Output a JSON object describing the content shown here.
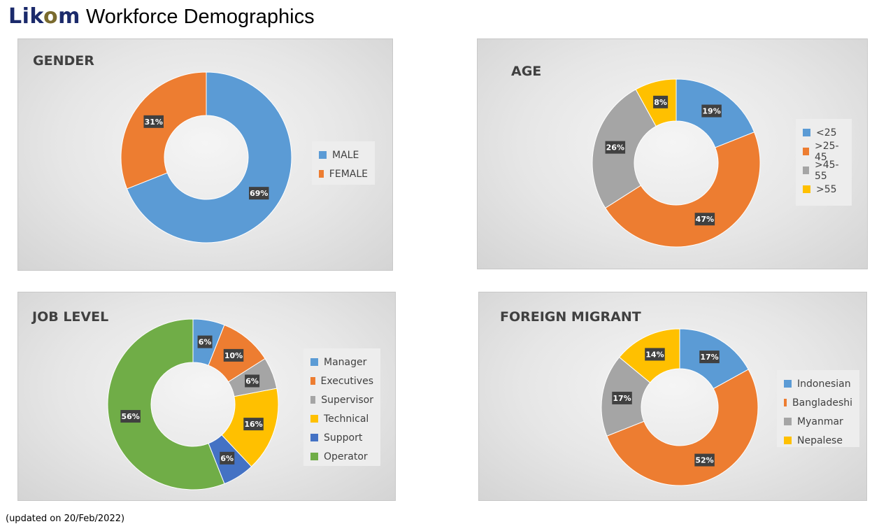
{
  "header": {
    "logo": "Likom",
    "title": "Workforce Demographics"
  },
  "footnote": "(updated on 20/Feb/2022)",
  "colors": {
    "blue": "#5b9bd5",
    "orange": "#ed7d31",
    "gray": "#a5a5a5",
    "yellow": "#ffc000",
    "darkblue": "#4472c4",
    "green": "#70ad47"
  },
  "chart_data": [
    {
      "type": "pie",
      "title": "GENDER",
      "categories": [
        "MALE",
        "FEMALE"
      ],
      "values": [
        69,
        31
      ],
      "labels": [
        "69%",
        "31%"
      ],
      "colors": [
        "#5b9bd5",
        "#ed7d31"
      ],
      "legend_position": "right"
    },
    {
      "type": "pie",
      "title": "AGE",
      "categories": [
        "<25",
        ">25-45",
        ">45-55",
        ">55"
      ],
      "values": [
        19,
        47,
        26,
        8
      ],
      "labels": [
        "19%",
        "47%",
        "26%",
        "8%"
      ],
      "colors": [
        "#5b9bd5",
        "#ed7d31",
        "#a5a5a5",
        "#ffc000"
      ],
      "legend_position": "right"
    },
    {
      "type": "pie",
      "title": "JOB LEVEL",
      "categories": [
        "Manager",
        "Executives",
        "Supervisor",
        "Technical",
        "Support",
        "Operator"
      ],
      "values": [
        6,
        10,
        6,
        16,
        6,
        56
      ],
      "labels": [
        "6%",
        "10%",
        "6%",
        "16%",
        "6%",
        "56%"
      ],
      "colors": [
        "#5b9bd5",
        "#ed7d31",
        "#a5a5a5",
        "#ffc000",
        "#4472c4",
        "#70ad47"
      ],
      "legend_position": "right"
    },
    {
      "type": "pie",
      "title": "FOREIGN MIGRANT",
      "categories": [
        "Indonesian",
        "Bangladeshi",
        "Myanmar",
        "Nepalese"
      ],
      "values": [
        17,
        52,
        17,
        14
      ],
      "labels": [
        "17%",
        "52%",
        "17%",
        "14%"
      ],
      "colors": [
        "#5b9bd5",
        "#ed7d31",
        "#a5a5a5",
        "#ffc000"
      ],
      "legend_position": "right"
    }
  ]
}
